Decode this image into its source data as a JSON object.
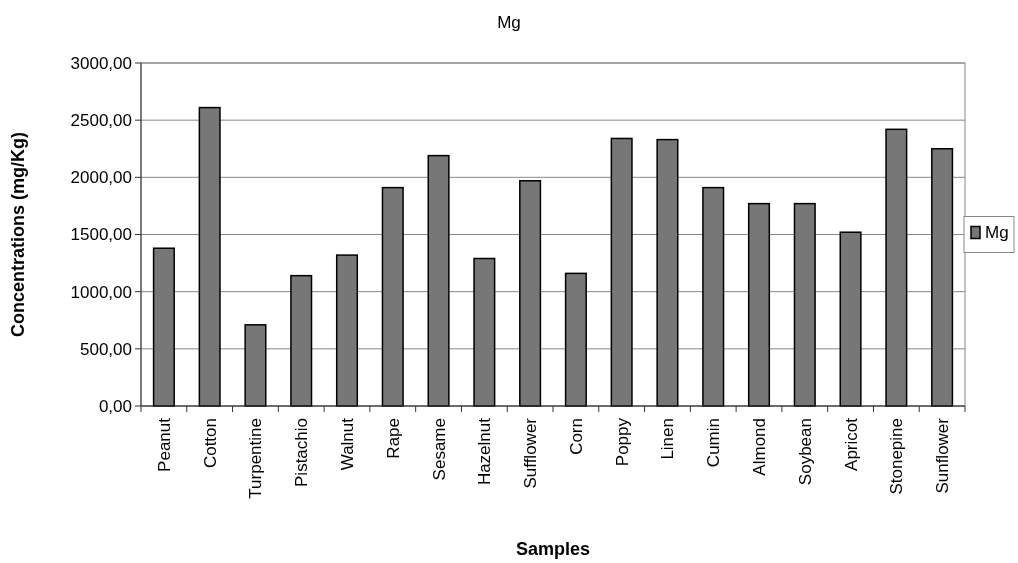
{
  "chart_data": {
    "type": "bar",
    "title": "Mg",
    "xlabel": "Samples",
    "ylabel": "Concentrations (mg/Kg)",
    "categories": [
      "Peanut",
      "Cotton",
      "Turpentine",
      "Pistachio",
      "Walnut",
      "Rape",
      "Sesame",
      "Hazelnut",
      "Sufflower",
      "Corn",
      "Poppy",
      "Linen",
      "Cumin",
      "Almond",
      "Soybean",
      "Apricot",
      "Stonepine",
      "Sunflower"
    ],
    "series": [
      {
        "name": "Mg",
        "color": "#777777",
        "values": [
          1380,
          2610,
          710,
          1140,
          1320,
          1910,
          2190,
          1290,
          1970,
          1160,
          2340,
          2330,
          1910,
          1770,
          1770,
          1520,
          2420,
          2250
        ]
      }
    ],
    "ylim": [
      0,
      3000
    ],
    "yticks": [
      {
        "value": 0,
        "label": "0,00"
      },
      {
        "value": 500,
        "label": "500,00"
      },
      {
        "value": 1000,
        "label": "1000,00"
      },
      {
        "value": 1500,
        "label": "1500,00"
      },
      {
        "value": 2000,
        "label": "2000,00"
      },
      {
        "value": 2500,
        "label": "2500,00"
      },
      {
        "value": 3000,
        "label": "3000,00"
      }
    ],
    "grid": "y",
    "legend": "right"
  }
}
